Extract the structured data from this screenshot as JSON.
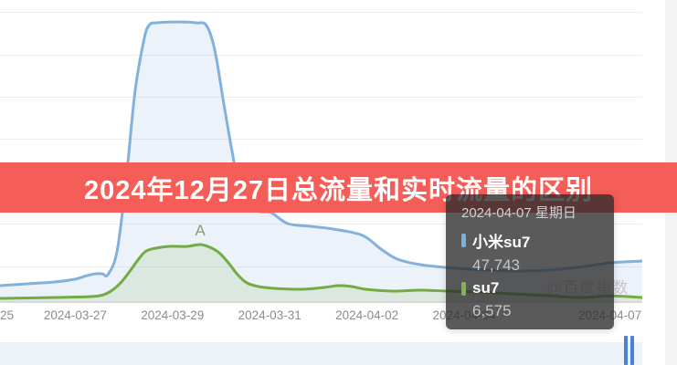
{
  "banner": {
    "title": "2024年12月27日总流量和实时流量的区别",
    "bg_color": "#f45d58",
    "text_color": "#ffffff"
  },
  "watermark": "@百度指数",
  "tooltip": {
    "date": "2024-04-07 星期日",
    "bg_color": "rgba(44,44,44,0.78)",
    "date_color": "#d2d2d2",
    "value_color": "#c6c6c6",
    "rows": [
      {
        "name": "小米su7",
        "value": "47,743",
        "marker_color": "#7eb0dd"
      },
      {
        "name": "su7",
        "value": "6,575",
        "marker_color": "#82b54b"
      }
    ]
  },
  "datazoom": {
    "handle_color": "#4a80d9"
  },
  "chart_data": {
    "type": "area",
    "title": "",
    "xlabel": "",
    "ylabel": "",
    "grid": true,
    "legend_position": "none",
    "x_window": {
      "start": "2024-03-25",
      "end": "2024-04-07",
      "unit": "day"
    },
    "x_ticks": [
      {
        "label": "25",
        "t": 0,
        "cut": true
      },
      {
        "label": "2024-03-27",
        "t": 2
      },
      {
        "label": "2024-03-29",
        "t": 4
      },
      {
        "label": "2024-03-31",
        "t": 6
      },
      {
        "label": "2024-04-02",
        "t": 8
      },
      {
        "label": "2024-04-04",
        "t": 10
      },
      {
        "label": "2024-04-07",
        "t": 13
      }
    ],
    "annotation": {
      "label": "A",
      "series": "su7",
      "t": 4.57,
      "value": 70500
    },
    "ylim": [
      0,
      360000
    ],
    "series": [
      {
        "name": "小米su7",
        "color": "#82b1dc",
        "fill": "rgba(130,177,220,0.16)",
        "points": [
          [
            0.45,
            19300
          ],
          [
            1.02,
            21600
          ],
          [
            1.58,
            23900
          ],
          [
            1.99,
            27300
          ],
          [
            2.24,
            31800
          ],
          [
            2.42,
            34100
          ],
          [
            2.56,
            34100
          ],
          [
            2.67,
            33000
          ],
          [
            2.86,
            62500
          ],
          [
            3.05,
            153500
          ],
          [
            3.23,
            261500
          ],
          [
            3.42,
            327400
          ],
          [
            3.53,
            344500
          ],
          [
            3.68,
            346800
          ],
          [
            4.12,
            347900
          ],
          [
            4.49,
            346800
          ],
          [
            4.7,
            343400
          ],
          [
            4.87,
            312700
          ],
          [
            5.06,
            244500
          ],
          [
            5.24,
            181900
          ],
          [
            5.39,
            136400
          ],
          [
            5.56,
            116000
          ],
          [
            5.81,
            111400
          ],
          [
            6.03,
            110300
          ],
          [
            6.37,
            96600
          ],
          [
            6.84,
            93200
          ],
          [
            7.31,
            89800
          ],
          [
            7.91,
            81900
          ],
          [
            8.29,
            64800
          ],
          [
            8.63,
            52300
          ],
          [
            9.1,
            45500
          ],
          [
            9.85,
            40900
          ],
          [
            10.98,
            37500
          ],
          [
            11.73,
            38700
          ],
          [
            12.48,
            43200
          ],
          [
            13.0,
            47743
          ],
          [
            13.66,
            50000
          ]
        ]
      },
      {
        "name": "su7",
        "color": "#76ab41",
        "fill": "rgba(118,171,65,0.13)",
        "points": [
          [
            0.45,
            3400
          ],
          [
            1.58,
            4500
          ],
          [
            2.33,
            5700
          ],
          [
            2.58,
            8000
          ],
          [
            2.76,
            13600
          ],
          [
            2.95,
            23900
          ],
          [
            3.14,
            38700
          ],
          [
            3.33,
            54600
          ],
          [
            3.46,
            62500
          ],
          [
            3.65,
            65900
          ],
          [
            3.93,
            68200
          ],
          [
            4.3,
            68200
          ],
          [
            4.57,
            70500
          ],
          [
            4.77,
            67100
          ],
          [
            4.96,
            60300
          ],
          [
            5.15,
            47800
          ],
          [
            5.34,
            33000
          ],
          [
            5.53,
            22700
          ],
          [
            5.77,
            18200
          ],
          [
            6.09,
            15900
          ],
          [
            6.65,
            14800
          ],
          [
            7.12,
            17100
          ],
          [
            7.41,
            19300
          ],
          [
            7.69,
            18200
          ],
          [
            7.97,
            14800
          ],
          [
            8.53,
            12500
          ],
          [
            9.1,
            13600
          ],
          [
            9.66,
            12500
          ],
          [
            10.23,
            11400
          ],
          [
            10.98,
            9100
          ],
          [
            11.73,
            6800
          ],
          [
            12.39,
            4500
          ],
          [
            13.0,
            6575
          ],
          [
            13.66,
            4500
          ]
        ]
      }
    ]
  }
}
